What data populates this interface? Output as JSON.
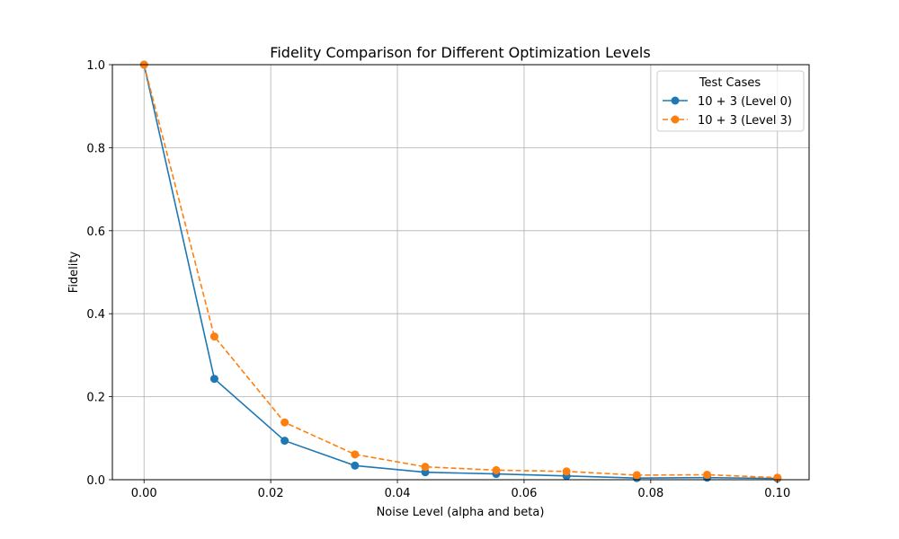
{
  "chart_data": {
    "type": "line",
    "title": "Fidelity Comparison for Different Optimization Levels",
    "xlabel": "Noise Level (alpha and beta)",
    "ylabel": "Fidelity",
    "xlim": [
      -0.005,
      0.105
    ],
    "ylim": [
      0.0,
      1.0
    ],
    "xticks": [
      0.0,
      0.02,
      0.04,
      0.06,
      0.08,
      0.1
    ],
    "xtick_labels": [
      "0.00",
      "0.02",
      "0.04",
      "0.06",
      "0.08",
      "0.10"
    ],
    "yticks": [
      0.0,
      0.2,
      0.4,
      0.6,
      0.8,
      1.0
    ],
    "ytick_labels": [
      "0.0",
      "0.2",
      "0.4",
      "0.6",
      "0.8",
      "1.0"
    ],
    "grid": true,
    "legend": {
      "title": "Test Cases",
      "placement": "top-right"
    },
    "x": [
      0.0,
      0.0111,
      0.0222,
      0.0333,
      0.0444,
      0.0556,
      0.0667,
      0.0778,
      0.0889,
      0.1
    ],
    "series": [
      {
        "name": "10 + 3 (Level 0)",
        "color": "#1f77b4",
        "line_style": "solid",
        "marker": "circle",
        "values": [
          1.0,
          0.243,
          0.094,
          0.034,
          0.018,
          0.014,
          0.009,
          0.004,
          0.005,
          0.003
        ]
      },
      {
        "name": "10 + 3 (Level 3)",
        "color": "#ff7f0e",
        "line_style": "dashed",
        "marker": "circle",
        "values": [
          1.0,
          0.345,
          0.138,
          0.061,
          0.031,
          0.023,
          0.02,
          0.011,
          0.012,
          0.005
        ]
      }
    ]
  }
}
